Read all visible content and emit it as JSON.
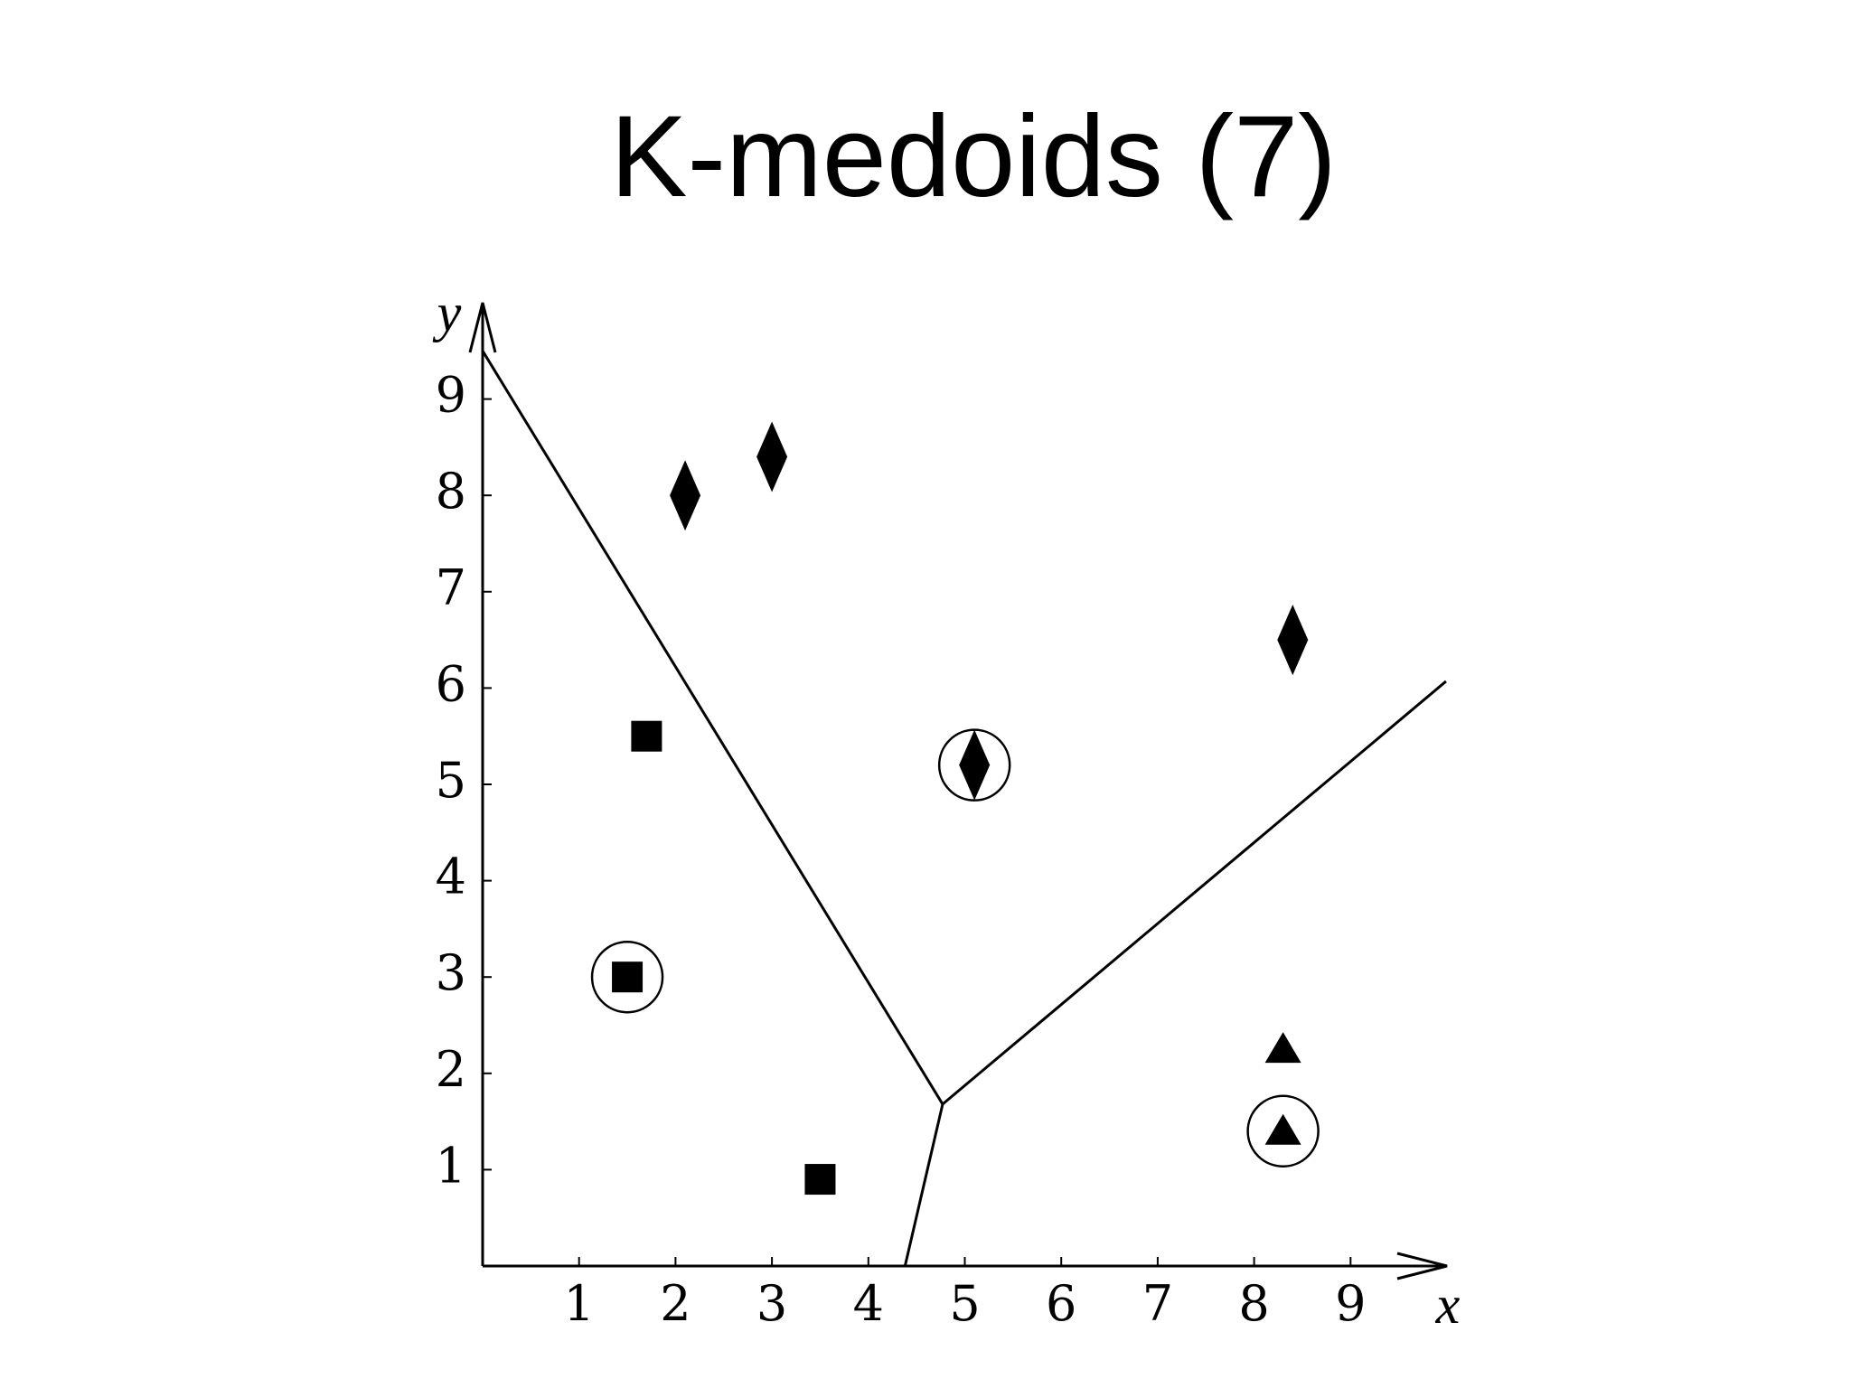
{
  "chart_data": {
    "type": "scatter",
    "title": "K-medoids (7)",
    "x_label": "x",
    "y_label": "y",
    "xlim": [
      0,
      10
    ],
    "ylim": [
      0,
      10
    ],
    "xticks": [
      1,
      2,
      3,
      4,
      5,
      6,
      7,
      8,
      9
    ],
    "yticks": [
      1,
      2,
      3,
      4,
      5,
      6,
      7,
      8,
      9
    ],
    "color": "#000000",
    "series": [
      {
        "marker": "diamond",
        "x": [
          2.1,
          3.0,
          8.4,
          5.1
        ],
        "values": [
          8.0,
          8.4,
          6.5,
          5.2
        ],
        "medoid": 3
      },
      {
        "marker": "square",
        "x": [
          1.7,
          1.5,
          3.5
        ],
        "values": [
          5.5,
          3.0,
          0.9
        ],
        "medoid": 1
      },
      {
        "marker": "triangle",
        "x": [
          8.3,
          8.3
        ],
        "values": [
          2.25,
          1.4
        ],
        "medoid": 1
      }
    ],
    "boundaries": [
      {
        "x": [
          0,
          4.77
        ],
        "values": [
          9.5,
          1.68
        ]
      },
      {
        "x": [
          4.77,
          4.38
        ],
        "values": [
          1.68,
          0
        ]
      },
      {
        "x": [
          4.77,
          9.99
        ],
        "values": [
          1.68,
          6.07
        ]
      }
    ]
  }
}
